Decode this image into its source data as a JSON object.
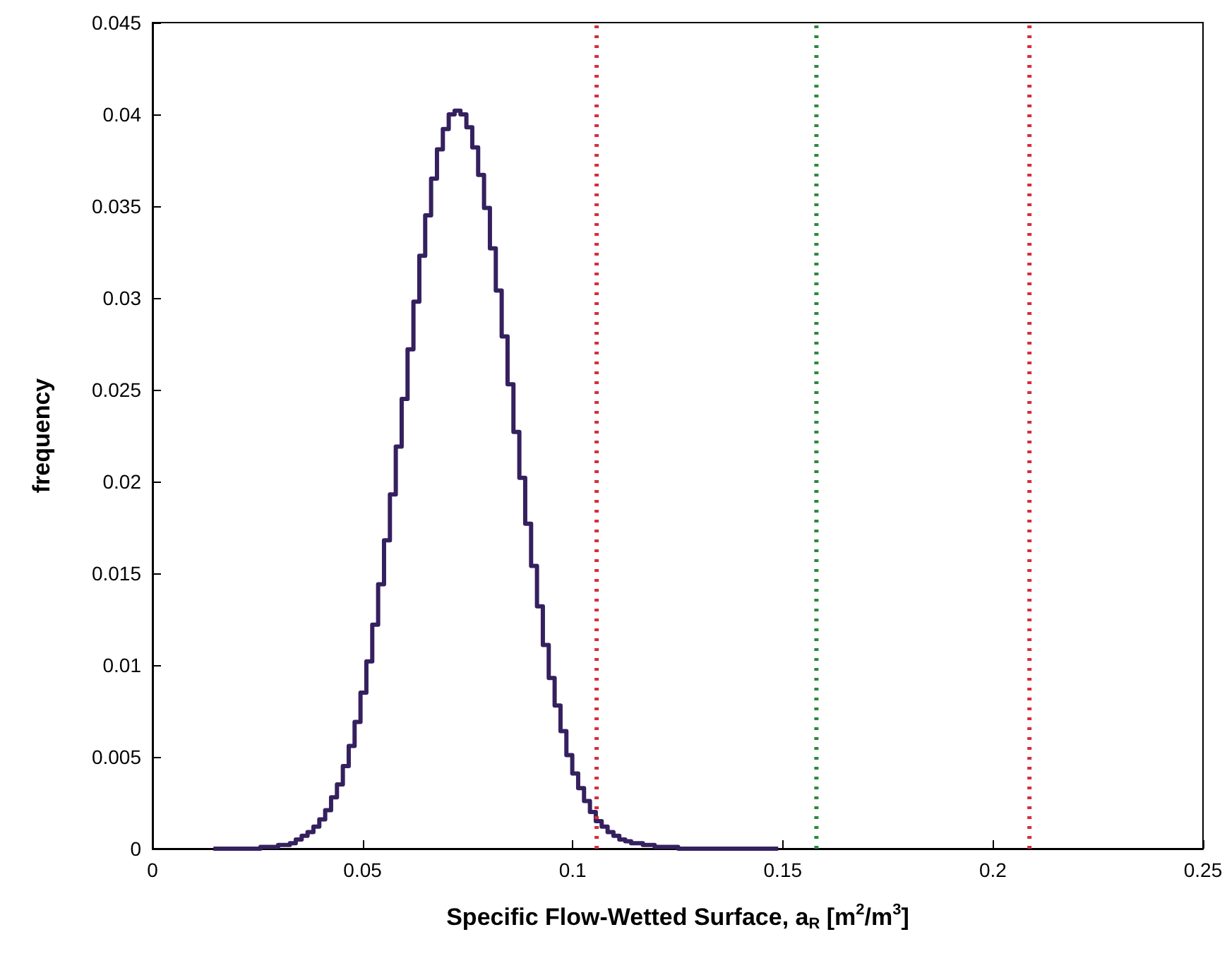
{
  "chart_data": {
    "type": "histogram",
    "xlabel": "Specific Flow-Wetted Surface, a$_{R}$ [m$^{2}$/m$^{3}$]",
    "ylabel": "frequency",
    "color": "#35205f",
    "bins": [
      0.0145,
      0.0159,
      0.0173,
      0.0187,
      0.0201,
      0.0215,
      0.0229,
      0.0243,
      0.0257,
      0.0271,
      0.0285,
      0.0299,
      0.0313,
      0.0327,
      0.0341,
      0.0355,
      0.0369,
      0.0383,
      0.0397,
      0.0411,
      0.0425,
      0.0439,
      0.0453,
      0.0467,
      0.0481,
      0.0495,
      0.0509,
      0.0523,
      0.0537,
      0.0551,
      0.0565,
      0.0579,
      0.0593,
      0.0607,
      0.0621,
      0.0635,
      0.0649,
      0.0663,
      0.0677,
      0.0691,
      0.0705,
      0.0719,
      0.0733,
      0.0747,
      0.0761,
      0.0775,
      0.0789,
      0.0803,
      0.0817,
      0.0831,
      0.0845,
      0.0859,
      0.0873,
      0.0887,
      0.0901,
      0.0915,
      0.0929,
      0.0943,
      0.0957,
      0.0971,
      0.0985,
      0.0999,
      0.1013,
      0.1027,
      0.1041,
      0.1055,
      0.1069,
      0.1083,
      0.1097,
      0.1111,
      0.1125,
      0.1139,
      0.1153,
      0.1167,
      0.1181,
      0.1195,
      0.1209,
      0.1223,
      0.1237,
      0.1251,
      0.1265,
      0.1279,
      0.1293,
      0.1307,
      0.1321,
      0.1335,
      0.1349,
      0.1363,
      0.1377,
      0.1391,
      0.1405,
      0.1419,
      0.1433,
      0.1447,
      0.1461,
      0.1475,
      0.1489
    ],
    "values": [
      0,
      0,
      0,
      0,
      0,
      0,
      0,
      0,
      0.0001,
      0.0001,
      0.0001,
      0.0002,
      0.0002,
      0.0003,
      0.0005,
      0.0007,
      0.0009,
      0.0012,
      0.0016,
      0.0021,
      0.0028,
      0.0035,
      0.0045,
      0.0056,
      0.0069,
      0.0085,
      0.0102,
      0.0122,
      0.0144,
      0.0168,
      0.0193,
      0.0219,
      0.0245,
      0.0272,
      0.0298,
      0.0323,
      0.0345,
      0.0365,
      0.0381,
      0.0392,
      0.04,
      0.0402,
      0.04,
      0.0393,
      0.0382,
      0.0367,
      0.0349,
      0.0327,
      0.0304,
      0.0279,
      0.0253,
      0.0227,
      0.0202,
      0.0177,
      0.0154,
      0.0132,
      0.0111,
      0.0093,
      0.0078,
      0.0064,
      0.0051,
      0.0041,
      0.0033,
      0.0026,
      0.002,
      0.0015,
      0.0012,
      0.0009,
      0.0007,
      0.0005,
      0.0004,
      0.0003,
      0.0003,
      0.0002,
      0.0002,
      0.0001,
      0.0001,
      0.0001,
      0.0001,
      0,
      0,
      0,
      0,
      0,
      0,
      0,
      0,
      0,
      0,
      0,
      0,
      0,
      0,
      0,
      0,
      0
    ],
    "xlim": [
      0,
      0.25
    ],
    "xticks": [
      0,
      0.05,
      0.1,
      0.15,
      0.2,
      0.25
    ],
    "ylim": [
      0,
      0.045
    ],
    "yticks": [
      0,
      0.005,
      0.01,
      0.015,
      0.02,
      0.025,
      0.03,
      0.035,
      0.04,
      0.045
    ],
    "ref_lines": [
      {
        "axis": "x",
        "value": 0.1057,
        "color": "#d62d3a",
        "line_style": "dotted"
      },
      {
        "axis": "x",
        "value": 0.158,
        "color": "#2a8a3a",
        "line_style": "dotted"
      },
      {
        "axis": "x",
        "value": 0.2087,
        "color": "#d62d3a",
        "line_style": "dotted"
      }
    ],
    "grid": false
  }
}
